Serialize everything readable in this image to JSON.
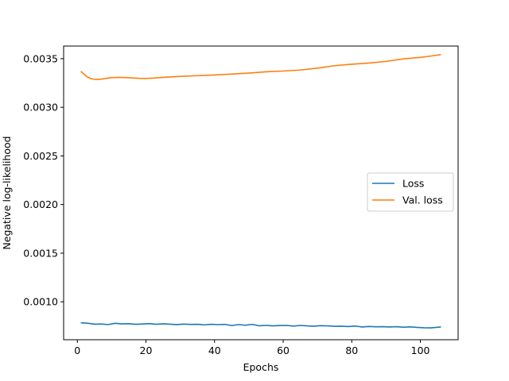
{
  "chart_data": {
    "type": "line",
    "title": "",
    "xlabel": "Epochs",
    "ylabel": "Negative log-likelihood",
    "xlim": [
      -4,
      111
    ],
    "ylim": [
      0.00061,
      0.00363
    ],
    "xticks": [
      0,
      20,
      40,
      60,
      80,
      100
    ],
    "yticks": [
      0.001,
      0.0015,
      0.002,
      0.0025,
      0.003,
      0.0035
    ],
    "ytick_labels": [
      "0.0010",
      "0.0015",
      "0.0020",
      "0.0025",
      "0.0030",
      "0.0035"
    ],
    "grid": false,
    "legend": "center-right",
    "series": [
      {
        "name": "Loss",
        "color": "#1f77b4",
        "x": [
          1,
          3,
          5,
          7,
          9,
          11,
          13,
          15,
          17,
          19,
          21,
          23,
          25,
          27,
          29,
          31,
          33,
          35,
          37,
          39,
          41,
          43,
          45,
          47,
          49,
          51,
          53,
          55,
          57,
          59,
          61,
          63,
          65,
          67,
          69,
          71,
          73,
          75,
          77,
          79,
          81,
          83,
          85,
          87,
          89,
          91,
          93,
          95,
          97,
          99,
          101,
          103,
          106
        ],
        "y": [
          0.000785,
          0.00078,
          0.00077,
          0.000772,
          0.000766,
          0.000779,
          0.000773,
          0.000775,
          0.000769,
          0.000772,
          0.000776,
          0.000769,
          0.000774,
          0.00077,
          0.000766,
          0.000771,
          0.000768,
          0.000769,
          0.000763,
          0.000769,
          0.000765,
          0.000768,
          0.000756,
          0.000766,
          0.000759,
          0.000768,
          0.000753,
          0.000758,
          0.000752,
          0.000756,
          0.000757,
          0.00075,
          0.000757,
          0.000752,
          0.000749,
          0.000754,
          0.000752,
          0.000748,
          0.000749,
          0.000745,
          0.000751,
          0.000741,
          0.000746,
          0.000743,
          0.000744,
          0.000741,
          0.000744,
          0.000739,
          0.000742,
          0.000737,
          0.000733,
          0.000732,
          0.000741
        ]
      },
      {
        "name": "Val. loss",
        "color": "#ff7f0e",
        "x": [
          1,
          2,
          3,
          4,
          5,
          6,
          7,
          8,
          10,
          12,
          14,
          16,
          18,
          20,
          22,
          24,
          26,
          30,
          35,
          40,
          45,
          50,
          55,
          60,
          65,
          70,
          75,
          80,
          85,
          90,
          95,
          100,
          103,
          106
        ],
        "y": [
          0.00337,
          0.00334,
          0.00331,
          0.003295,
          0.003288,
          0.003287,
          0.00329,
          0.003295,
          0.003305,
          0.003308,
          0.003306,
          0.003302,
          0.003298,
          0.003297,
          0.0033,
          0.003305,
          0.00331,
          0.003318,
          0.003325,
          0.003333,
          0.003342,
          0.003352,
          0.003365,
          0.003373,
          0.003383,
          0.003403,
          0.003428,
          0.003443,
          0.003455,
          0.003472,
          0.003498,
          0.003513,
          0.003527,
          0.003542
        ]
      }
    ]
  }
}
